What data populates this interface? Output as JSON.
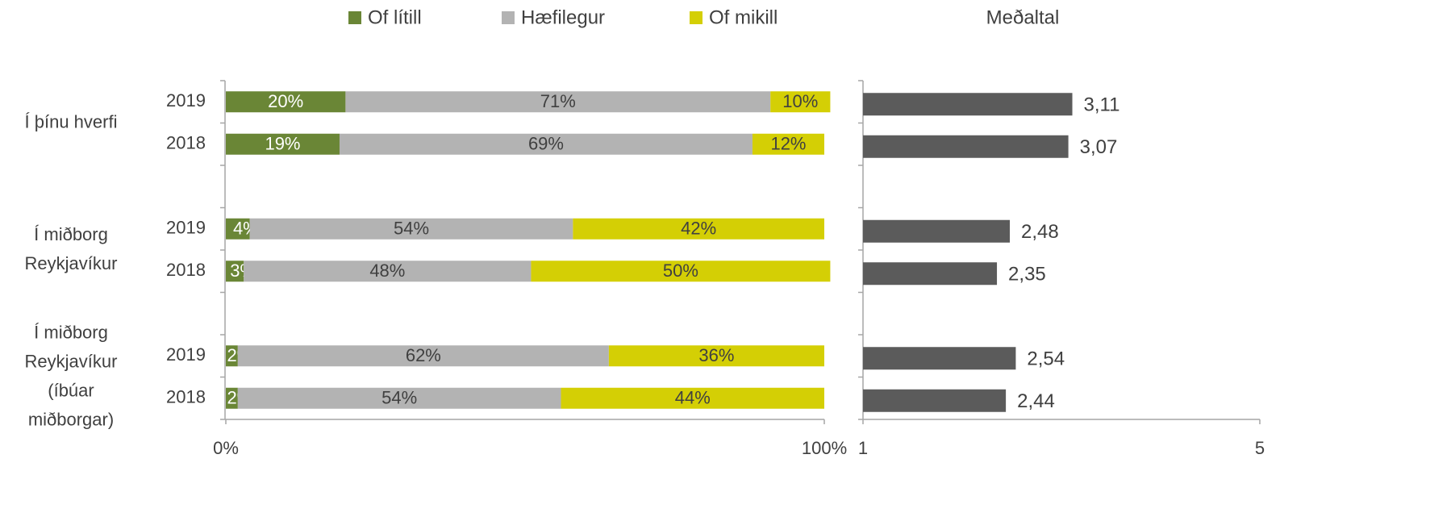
{
  "chart_data": [
    {
      "type": "stacked-bar",
      "orientation": "horizontal",
      "groups": [
        [
          "Í þínu hverfi"
        ],
        [
          "Í miðborg",
          "Reykjavíkur"
        ],
        [
          "Í miðborg",
          "Reykjavíkur",
          "(íbúar",
          "miðborgar)"
        ]
      ],
      "categories": [
        "2019",
        "2018",
        "2019",
        "2018",
        "2019",
        "2018"
      ],
      "series": [
        {
          "name": "Of lítill",
          "color": "#6a8636",
          "values": [
            20,
            19,
            4,
            3,
            2,
            2
          ],
          "value_labels": [
            "20%",
            "19%",
            "4%",
            "3%",
            "2%",
            "2%"
          ]
        },
        {
          "name": "Hæfilegur",
          "color": "#b3b3b3",
          "values": [
            71,
            69,
            54,
            48,
            62,
            54
          ],
          "value_labels": [
            "71%",
            "69%",
            "54%",
            "48%",
            "62%",
            "54%"
          ]
        },
        {
          "name": "Of mikill",
          "color": "#d4cf05",
          "values": [
            10,
            12,
            42,
            50,
            36,
            44
          ],
          "value_labels": [
            "10%",
            "12%",
            "42%",
            "50%",
            "36%",
            "44%"
          ]
        }
      ],
      "xlim": [
        0,
        100
      ],
      "xticks": [
        {
          "value": 0,
          "label": "0%"
        },
        {
          "value": 100,
          "label": "100%"
        }
      ],
      "legend": "top"
    },
    {
      "type": "bar",
      "orientation": "horizontal",
      "title": "Meðaltal",
      "color": "#5b5b5b",
      "values": [
        3.11,
        3.07,
        2.48,
        2.35,
        2.54,
        2.44
      ],
      "value_labels": [
        "3,11",
        "3,07",
        "2,48",
        "2,35",
        "2,54",
        "2,44"
      ],
      "xlim": [
        1,
        5
      ],
      "xticks": [
        1,
        5
      ]
    }
  ]
}
